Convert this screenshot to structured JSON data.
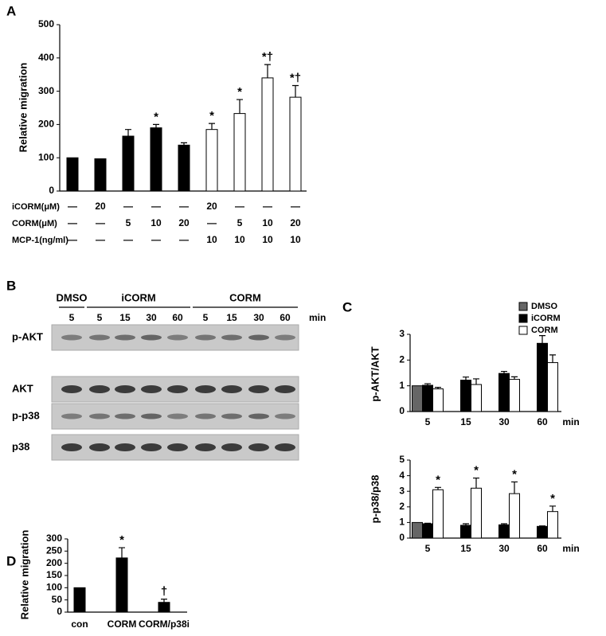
{
  "chart_data": [
    {
      "type": "bar",
      "panel_label": "A",
      "ylabel": "Relative migration",
      "ylim": [
        0,
        500
      ],
      "yticks": [
        0,
        100,
        200,
        300,
        400,
        500
      ],
      "values": [
        100,
        97,
        165,
        190,
        138,
        185,
        233,
        340,
        282
      ],
      "errors": [
        null,
        null,
        20,
        10,
        7,
        18,
        42,
        40,
        35
      ],
      "colors": [
        "#000000",
        "#000000",
        "#000000",
        "#000000",
        "#000000",
        "#ffffff",
        "#ffffff",
        "#ffffff",
        "#ffffff"
      ],
      "annotations": [
        null,
        null,
        null,
        "*",
        null,
        "*",
        "*",
        "*†",
        "*†"
      ],
      "treatments": [
        {
          "label": "iCORM(μM)",
          "cells": [
            "—",
            "20",
            "—",
            "—",
            "—",
            "20",
            "—",
            "—",
            "—"
          ]
        },
        {
          "label": "CORM(μM)",
          "cells": [
            "—",
            "—",
            "5",
            "10",
            "20",
            "—",
            "5",
            "10",
            "20"
          ]
        },
        {
          "label": "MCP-1(ng/ml)",
          "cells": [
            "—",
            "—",
            "—",
            "—",
            "—",
            "10",
            "10",
            "10",
            "10"
          ]
        }
      ]
    },
    {
      "type": "grouped_bar",
      "panel_label": "C",
      "ylabel": "p-AKT/AKT",
      "xlabel": "min",
      "categories": [
        "5",
        "15",
        "30",
        "60"
      ],
      "ylim": [
        0,
        3
      ],
      "yticks": [
        0,
        1,
        2,
        3
      ],
      "legend": "upper right",
      "series": [
        {
          "name": "DMSO",
          "color": "#666666",
          "values": [
            1.0,
            null,
            null,
            null
          ],
          "errors": [
            null,
            null,
            null,
            null
          ]
        },
        {
          "name": "iCORM",
          "color": "#000000",
          "values": [
            1.02,
            1.22,
            1.48,
            2.65
          ],
          "errors": [
            0.06,
            0.12,
            0.08,
            0.3
          ]
        },
        {
          "name": "CORM",
          "color": "#ffffff",
          "values": [
            0.88,
            1.05,
            1.25,
            1.9
          ],
          "errors": [
            0.06,
            0.22,
            0.1,
            0.3
          ]
        }
      ]
    },
    {
      "type": "grouped_bar",
      "ylabel": "p-p38/p38",
      "xlabel": "min",
      "categories": [
        "5",
        "15",
        "30",
        "60"
      ],
      "ylim": [
        0,
        5
      ],
      "yticks": [
        0,
        1,
        2,
        3,
        4,
        5
      ],
      "series": [
        {
          "name": "DMSO",
          "color": "#666666",
          "values": [
            1.0,
            null,
            null,
            null
          ],
          "errors": [
            null,
            null,
            null,
            null
          ],
          "annotations": [
            null,
            null,
            null,
            null
          ]
        },
        {
          "name": "iCORM",
          "color": "#000000",
          "values": [
            0.92,
            0.82,
            0.85,
            0.75
          ],
          "errors": [
            0.03,
            0.1,
            0.07,
            0.03
          ],
          "annotations": [
            null,
            null,
            null,
            null
          ]
        },
        {
          "name": "CORM",
          "color": "#ffffff",
          "values": [
            3.1,
            3.2,
            2.85,
            1.7
          ],
          "errors": [
            0.15,
            0.65,
            0.75,
            0.35
          ],
          "annotations": [
            "*",
            "*",
            "*",
            "*"
          ]
        }
      ]
    },
    {
      "type": "bar",
      "panel_label": "D",
      "ylabel": "Relative migration",
      "categories": [
        "con",
        "CORM",
        "CORM/p38i"
      ],
      "ylim": [
        0,
        300
      ],
      "yticks": [
        0,
        50,
        100,
        150,
        200,
        250,
        300
      ],
      "values": [
        100,
        222,
        40
      ],
      "errors": [
        null,
        42,
        13
      ],
      "color": "#000000",
      "annotations": [
        null,
        "*",
        "†"
      ]
    }
  ],
  "blot": {
    "panel_label": "B",
    "unit": "min",
    "groups": [
      {
        "name": "DMSO",
        "lanes": [
          "5"
        ]
      },
      {
        "name": "iCORM",
        "lanes": [
          "5",
          "15",
          "30",
          "60"
        ]
      },
      {
        "name": "CORM",
        "lanes": [
          "5",
          "15",
          "30",
          "60"
        ]
      }
    ],
    "rows": [
      "p-AKT",
      "AKT",
      "p-p38",
      "p38"
    ]
  }
}
